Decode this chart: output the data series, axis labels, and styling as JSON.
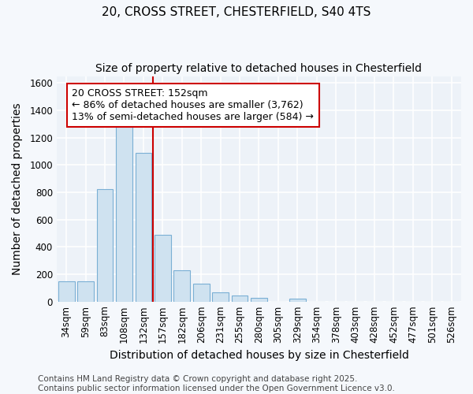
{
  "title_line1": "20, CROSS STREET, CHESTERFIELD, S40 4TS",
  "title_line2": "Size of property relative to detached houses in Chesterfield",
  "xlabel": "Distribution of detached houses by size in Chesterfield",
  "ylabel": "Number of detached properties",
  "categories": [
    "34sqm",
    "59sqm",
    "83sqm",
    "108sqm",
    "132sqm",
    "157sqm",
    "182sqm",
    "206sqm",
    "231sqm",
    "255sqm",
    "280sqm",
    "305sqm",
    "329sqm",
    "354sqm",
    "378sqm",
    "403sqm",
    "428sqm",
    "452sqm",
    "477sqm",
    "501sqm",
    "526sqm"
  ],
  "values": [
    150,
    150,
    820,
    1300,
    1090,
    490,
    230,
    130,
    70,
    45,
    25,
    0,
    20,
    0,
    0,
    0,
    0,
    0,
    0,
    0,
    0
  ],
  "bar_color": "#cfe2f0",
  "bar_edge_color": "#7aafd4",
  "property_line_x": 4.5,
  "property_line_color": "#cc0000",
  "annotation_text": "20 CROSS STREET: 152sqm\n← 86% of detached houses are smaller (3,762)\n13% of semi-detached houses are larger (584) →",
  "annotation_box_color": "#ffffff",
  "annotation_box_edge_color": "#cc0000",
  "ylim": [
    0,
    1650
  ],
  "yticks": [
    0,
    200,
    400,
    600,
    800,
    1000,
    1200,
    1400,
    1600
  ],
  "footer_line1": "Contains HM Land Registry data © Crown copyright and database right 2025.",
  "footer_line2": "Contains public sector information licensed under the Open Government Licence v3.0.",
  "background_color": "#f5f8fc",
  "plot_bg_color": "#edf2f8",
  "grid_color": "#ffffff",
  "title_fontsize": 11,
  "subtitle_fontsize": 10,
  "axis_label_fontsize": 10,
  "tick_fontsize": 8.5,
  "annotation_fontsize": 9,
  "footer_fontsize": 7.5
}
